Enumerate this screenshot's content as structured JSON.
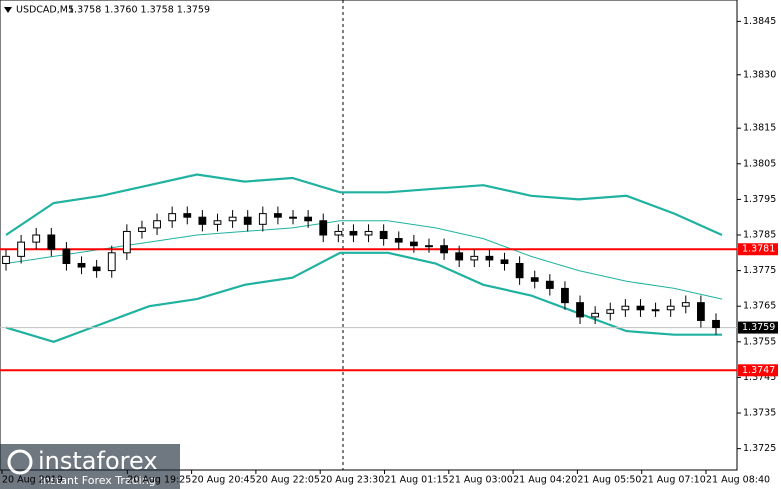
{
  "chart_data": {
    "type": "candlestick",
    "title": "USDCAD,M5",
    "quote": "1.3758 1.3760 1.3758 1.3759",
    "x_labels": [
      "20 Aug 2019",
      "20 Aug 19:25",
      "20 Aug 20:45",
      "20 Aug 22:05",
      "20 Aug 23:30",
      "21 Aug 01:15",
      "21 Aug 03:00",
      "21 Aug 04:20",
      "21 Aug 05:50",
      "21 Aug 07:10",
      "21 Aug 08:40"
    ],
    "open": [
      1.3777,
      1.3779,
      1.3783,
      1.3785,
      1.3781,
      1.3777,
      1.3776,
      1.3775,
      1.378,
      1.3786,
      1.3787,
      1.3789,
      1.3791,
      1.379,
      1.3788,
      1.3789,
      1.379,
      1.3788,
      1.3791,
      1.379,
      1.379,
      1.3789,
      1.3785,
      1.3786,
      1.3785,
      1.3786,
      1.3784,
      1.3783,
      1.3782,
      1.3782,
      1.378,
      1.3778,
      1.3779,
      1.3778,
      1.3777,
      1.3773,
      1.3772,
      1.377,
      1.3766,
      1.3762,
      1.3763,
      1.3764,
      1.3765,
      1.3764,
      1.3764,
      1.3765,
      1.3766,
      1.3761
    ],
    "high": [
      1.3781,
      1.3785,
      1.3787,
      1.3787,
      1.3783,
      1.3779,
      1.3778,
      1.3782,
      1.3788,
      1.3789,
      1.3791,
      1.3793,
      1.3793,
      1.3792,
      1.3791,
      1.3792,
      1.3792,
      1.3793,
      1.3793,
      1.3792,
      1.3792,
      1.3791,
      1.3788,
      1.3788,
      1.3788,
      1.3788,
      1.3786,
      1.3785,
      1.3784,
      1.3784,
      1.3782,
      1.3781,
      1.3781,
      1.378,
      1.3779,
      1.3775,
      1.3774,
      1.3772,
      1.3768,
      1.3765,
      1.3766,
      1.3767,
      1.3767,
      1.3766,
      1.3767,
      1.3768,
      1.3768,
      1.3763
    ],
    "low": [
      1.3775,
      1.3777,
      1.3781,
      1.3779,
      1.3775,
      1.3774,
      1.3773,
      1.3773,
      1.3778,
      1.3784,
      1.3785,
      1.3787,
      1.3788,
      1.3786,
      1.3786,
      1.3787,
      1.3786,
      1.3786,
      1.3788,
      1.3788,
      1.3787,
      1.3783,
      1.3783,
      1.3783,
      1.3783,
      1.3782,
      1.3781,
      1.378,
      1.378,
      1.3778,
      1.3776,
      1.3776,
      1.3776,
      1.3775,
      1.3771,
      1.377,
      1.3768,
      1.3764,
      1.376,
      1.376,
      1.3761,
      1.3762,
      1.3762,
      1.3762,
      1.3762,
      1.3763,
      1.3759,
      1.3757
    ],
    "close": [
      1.3779,
      1.3783,
      1.3785,
      1.3781,
      1.3777,
      1.3776,
      1.3775,
      1.378,
      1.3786,
      1.3787,
      1.3789,
      1.3791,
      1.379,
      1.3788,
      1.3789,
      1.379,
      1.3788,
      1.3791,
      1.379,
      1.379,
      1.3789,
      1.3785,
      1.3786,
      1.3785,
      1.3786,
      1.3784,
      1.3783,
      1.3782,
      1.3782,
      1.378,
      1.3778,
      1.3779,
      1.3778,
      1.3777,
      1.3773,
      1.3772,
      1.377,
      1.3766,
      1.3762,
      1.3763,
      1.3764,
      1.3765,
      1.3764,
      1.3764,
      1.3765,
      1.3766,
      1.3761,
      1.3759
    ],
    "series": [
      {
        "color": "#20b2a0",
        "values": [
          1.3785,
          1.3794,
          1.3796,
          1.3799,
          1.3802,
          1.38,
          1.3801,
          1.3797,
          1.3797,
          1.3798,
          1.3799,
          1.3796,
          1.3795,
          1.3796,
          1.3791,
          1.3785
        ]
      },
      {
        "color": "#20b2a0",
        "values": [
          1.3777,
          1.3779,
          1.3781,
          1.3783,
          1.3785,
          1.3786,
          1.3787,
          1.3789,
          1.3789,
          1.3787,
          1.3784,
          1.3779,
          1.3775,
          1.3772,
          1.377,
          1.3767
        ]
      },
      {
        "color": "#20b2a0",
        "values": [
          1.3759,
          1.3755,
          1.376,
          1.3765,
          1.3767,
          1.3771,
          1.3773,
          1.378,
          1.378,
          1.3777,
          1.3771,
          1.3768,
          1.3763,
          1.3758,
          1.3757,
          1.3757
        ]
      }
    ],
    "levels": [
      {
        "value": 1.3781,
        "color": "#ff0000"
      },
      {
        "value": 1.3747,
        "color": "#ff0000"
      }
    ],
    "current_price": 1.3759,
    "ylim": [
      1.3719,
      1.3851
    ],
    "yticks": [
      1.3845,
      {
        "value": 1.383,
        "label": "1.3830"
      },
      1.3815,
      1.3805,
      1.3795,
      1.3785,
      1.3775,
      1.3765,
      1.3755,
      1.3745,
      1.3735,
      1.3725
    ],
    "watermark": {
      "brand": "instaforex",
      "tagline": "Instant Forex Trading"
    }
  }
}
